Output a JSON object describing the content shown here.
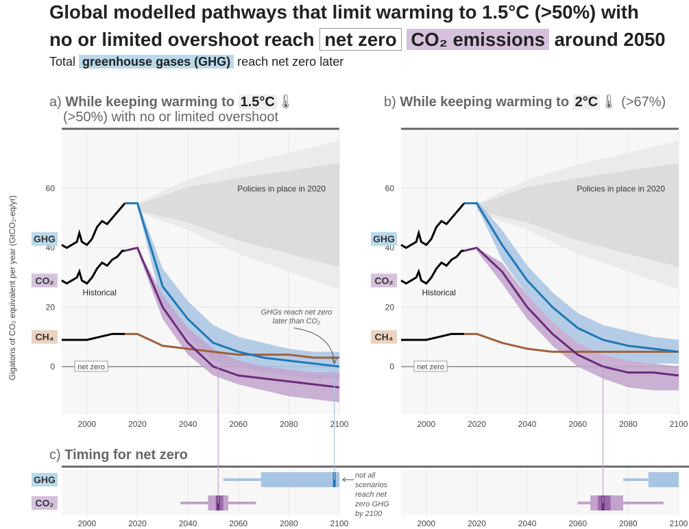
{
  "title": {
    "line1": "Global modelled pathways that limit warming to 1.5°C (>50%) with",
    "line2_prefix": "no or limited overshoot reach",
    "line2_box": "net zero",
    "line2_co2": "CO₂ emissions",
    "line2_suffix": "around 2050",
    "subtitle_prefix": "Total",
    "subtitle_ghg": "greenhouse gases (GHG)",
    "subtitle_suffix": "reach net zero later"
  },
  "panel_a": {
    "letter": "a)",
    "title_prefix": "While keeping warming to",
    "title_temp": "1.5°C",
    "title_line2": "(>50%) with no or limited overshoot"
  },
  "panel_b": {
    "letter": "b)",
    "title_prefix": "While keeping warming to",
    "title_temp": "2°C",
    "title_suffix": "(>67%)"
  },
  "panel_c": {
    "letter": "c)",
    "title": "Timing for net zero"
  },
  "labels": {
    "ghg": "GHG",
    "co2": "CO₂",
    "ch4": "CH₄",
    "historical": "Historical",
    "policies": "Policies in place in 2020",
    "net_zero": "net zero",
    "annotation_ghg": "GHGs reach net zero later than CO₂",
    "annotation_not_all": "not all scenarios reach net zero GHG by 2100",
    "y_axis": "Gigatons of CO₂ equivalent per year (GtCO₂-eq/yr)"
  },
  "colors": {
    "ghg": "#1f77b4",
    "ghg_band": "#a8c4e3",
    "co2": "#6a2c7a",
    "co2_band": "#c2a3cc",
    "ch4": "#a0603a",
    "historical": "#000000",
    "policy_band": "#d9d9d9",
    "ghg_tag": "#b9d9ea",
    "co2_tag": "#d6c1dd",
    "ch4_tag": "#ecd3c0"
  },
  "chart_data": [
    {
      "type": "line",
      "panel": "a",
      "xlim": [
        1990,
        2100
      ],
      "ylim": [
        -20,
        80
      ],
      "x_ticks": [
        2000,
        2020,
        2040,
        2060,
        2080,
        2100
      ],
      "y_ticks": [
        0,
        20,
        40,
        60
      ],
      "series": [
        {
          "name": "GHG",
          "kind": "historical",
          "x": [
            1990,
            1992,
            1994,
            1996,
            1997,
            1998,
            2000,
            2002,
            2004,
            2006,
            2008,
            2010,
            2012,
            2014,
            2015
          ],
          "y": [
            41,
            40,
            41,
            42,
            45,
            42,
            41,
            43,
            47,
            49,
            48,
            50,
            52,
            54,
            55
          ]
        },
        {
          "name": "GHG",
          "kind": "median",
          "x": [
            2015,
            2020,
            2030,
            2040,
            2050,
            2060,
            2070,
            2080,
            2090,
            2100
          ],
          "y": [
            55,
            55,
            27,
            16,
            8,
            5,
            3,
            2,
            1,
            0
          ]
        },
        {
          "name": "GHG",
          "kind": "band_high",
          "x": [
            2020,
            2030,
            2040,
            2050,
            2060,
            2070,
            2080,
            2090,
            2100
          ],
          "y": [
            56,
            33,
            22,
            14,
            10,
            8,
            6,
            5,
            5
          ]
        },
        {
          "name": "GHG",
          "kind": "band_low",
          "x": [
            2020,
            2030,
            2040,
            2050,
            2060,
            2070,
            2080,
            2090,
            2100
          ],
          "y": [
            54,
            20,
            10,
            2,
            0,
            -2,
            -3,
            -4,
            -4
          ]
        },
        {
          "name": "CO₂",
          "kind": "historical",
          "x": [
            1990,
            1992,
            1994,
            1996,
            1997,
            1998,
            2000,
            2002,
            2004,
            2006,
            2008,
            2010,
            2012,
            2014,
            2015
          ],
          "y": [
            29,
            28,
            29,
            30,
            32,
            29,
            28,
            30,
            33,
            35,
            34,
            36,
            37,
            39,
            39
          ]
        },
        {
          "name": "CO₂",
          "kind": "median",
          "x": [
            2015,
            2020,
            2030,
            2040,
            2050,
            2060,
            2070,
            2080,
            2090,
            2100
          ],
          "y": [
            39,
            40,
            20,
            8,
            0,
            -3,
            -4,
            -5,
            -6,
            -7
          ]
        },
        {
          "name": "CO₂",
          "kind": "band_high",
          "x": [
            2020,
            2030,
            2040,
            2050,
            2060,
            2070,
            2080,
            2090,
            2100
          ],
          "y": [
            40,
            24,
            13,
            6,
            2,
            0,
            -1,
            -2,
            -2
          ]
        },
        {
          "name": "CO₂",
          "kind": "band_low",
          "x": [
            2020,
            2030,
            2040,
            2050,
            2060,
            2070,
            2080,
            2090,
            2100
          ],
          "y": [
            39,
            16,
            4,
            -3,
            -6,
            -8,
            -10,
            -11,
            -12
          ]
        },
        {
          "name": "CH₄",
          "kind": "historical",
          "x": [
            1990,
            1995,
            2000,
            2005,
            2010,
            2015
          ],
          "y": [
            9,
            9,
            9,
            10,
            11,
            11
          ]
        },
        {
          "name": "CH₄",
          "kind": "median",
          "x": [
            2015,
            2020,
            2030,
            2040,
            2050,
            2060,
            2070,
            2080,
            2090,
            2100
          ],
          "y": [
            11,
            11,
            7,
            6,
            5,
            4,
            4,
            4,
            3,
            3
          ]
        }
      ],
      "policies_band": {
        "x": [
          2020,
          2040,
          2060,
          2080,
          2100
        ],
        "high": [
          55,
          63,
          68,
          72,
          76
        ],
        "low": [
          52,
          46,
          38,
          32,
          26
        ]
      },
      "net_zero_years": {
        "CO₂": 2052,
        "GHG": 2098
      }
    },
    {
      "type": "line",
      "panel": "b",
      "xlim": [
        1990,
        2100
      ],
      "ylim": [
        -20,
        80
      ],
      "x_ticks": [
        2000,
        2020,
        2040,
        2060,
        2080,
        2100
      ],
      "y_ticks": [
        0,
        20,
        40,
        60
      ],
      "series": [
        {
          "name": "GHG",
          "kind": "historical",
          "x": [
            1990,
            1992,
            1994,
            1996,
            1997,
            1998,
            2000,
            2002,
            2004,
            2006,
            2008,
            2010,
            2012,
            2014,
            2015
          ],
          "y": [
            41,
            40,
            41,
            42,
            45,
            42,
            41,
            43,
            47,
            49,
            48,
            50,
            52,
            54,
            55
          ]
        },
        {
          "name": "GHG",
          "kind": "median",
          "x": [
            2015,
            2020,
            2030,
            2040,
            2050,
            2060,
            2070,
            2080,
            2090,
            2100
          ],
          "y": [
            55,
            55,
            41,
            29,
            20,
            13,
            9,
            7,
            6,
            5
          ]
        },
        {
          "name": "GHG",
          "kind": "band_high",
          "x": [
            2020,
            2030,
            2040,
            2050,
            2060,
            2070,
            2080,
            2090,
            2100
          ],
          "y": [
            56,
            46,
            34,
            25,
            18,
            14,
            12,
            10,
            9
          ]
        },
        {
          "name": "GHG",
          "kind": "band_low",
          "x": [
            2020,
            2030,
            2040,
            2050,
            2060,
            2070,
            2080,
            2090,
            2100
          ],
          "y": [
            54,
            36,
            24,
            15,
            8,
            4,
            2,
            1,
            1
          ]
        },
        {
          "name": "CO₂",
          "kind": "historical",
          "x": [
            1990,
            1992,
            1994,
            1996,
            1997,
            1998,
            2000,
            2002,
            2004,
            2006,
            2008,
            2010,
            2012,
            2014,
            2015
          ],
          "y": [
            29,
            28,
            29,
            30,
            32,
            29,
            28,
            30,
            33,
            35,
            34,
            36,
            37,
            39,
            39
          ]
        },
        {
          "name": "CO₂",
          "kind": "median",
          "x": [
            2015,
            2020,
            2030,
            2040,
            2050,
            2060,
            2070,
            2080,
            2090,
            2100
          ],
          "y": [
            39,
            40,
            32,
            20,
            11,
            4,
            0,
            -2,
            -2,
            -3
          ]
        },
        {
          "name": "CO₂",
          "kind": "band_high",
          "x": [
            2020,
            2030,
            2040,
            2050,
            2060,
            2070,
            2080,
            2090,
            2100
          ],
          "y": [
            40,
            35,
            24,
            15,
            8,
            4,
            2,
            1,
            0
          ]
        },
        {
          "name": "CO₂",
          "kind": "band_low",
          "x": [
            2020,
            2030,
            2040,
            2050,
            2060,
            2070,
            2080,
            2090,
            2100
          ],
          "y": [
            39,
            28,
            16,
            7,
            0,
            -4,
            -7,
            -8,
            -8
          ]
        },
        {
          "name": "CH₄",
          "kind": "historical",
          "x": [
            1990,
            1995,
            2000,
            2005,
            2010,
            2015
          ],
          "y": [
            9,
            9,
            9,
            10,
            11,
            11
          ]
        },
        {
          "name": "CH₄",
          "kind": "median",
          "x": [
            2015,
            2020,
            2030,
            2040,
            2050,
            2060,
            2070,
            2080,
            2090,
            2100
          ],
          "y": [
            11,
            11,
            8,
            6,
            5,
            5,
            5,
            5,
            5,
            5
          ]
        }
      ],
      "policies_band": {
        "x": [
          2020,
          2040,
          2060,
          2080,
          2100
        ],
        "high": [
          55,
          63,
          68,
          72,
          76
        ],
        "low": [
          52,
          46,
          38,
          32,
          26
        ]
      },
      "net_zero_years": {
        "CO₂": 2070
      }
    },
    {
      "type": "box",
      "panel": "c",
      "xlim": [
        1990,
        2100
      ],
      "x_ticks": [
        2000,
        2020,
        2040,
        2060,
        2080,
        2100
      ],
      "rows": [
        {
          "name": "GHG",
          "scenario": "1.5°C",
          "whisker": [
            2054,
            2100
          ],
          "box": [
            2069,
            2100
          ],
          "median": 2098
        },
        {
          "name": "CO₂",
          "scenario": "1.5°C",
          "whisker": [
            2037,
            2067
          ],
          "box": [
            2048,
            2056
          ],
          "inner": [
            2051,
            2054
          ],
          "median": 2052
        },
        {
          "name": "GHG",
          "scenario": "2°C",
          "whisker": [
            2078,
            2100
          ],
          "box": [
            2088,
            2100
          ]
        },
        {
          "name": "CO₂",
          "scenario": "2°C",
          "whisker": [
            2060,
            2094
          ],
          "box": [
            2065,
            2078
          ],
          "inner": [
            2068,
            2073
          ],
          "median": 2070
        }
      ]
    }
  ]
}
